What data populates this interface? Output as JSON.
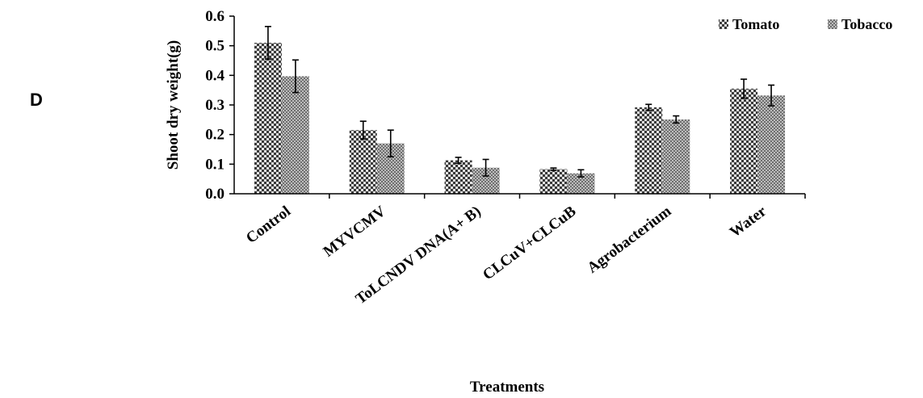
{
  "panel_label": "D",
  "colors": {
    "tomato": "#5a5a5a",
    "tobacco": "#9a9a9a"
  },
  "chart_data": {
    "type": "bar",
    "categories": [
      "Control",
      "MYVCMV",
      "ToLCNDV DNA(A+ B)",
      "CLCuV+CLCuB",
      "Agrobacterium",
      "Water"
    ],
    "series": [
      {
        "name": "Tomato",
        "values": [
          0.51,
          0.215,
          0.113,
          0.083,
          0.292,
          0.355
        ],
        "errors": [
          0.055,
          0.03,
          0.01,
          0.004,
          0.01,
          0.032
        ]
      },
      {
        "name": "Tobacco",
        "values": [
          0.397,
          0.17,
          0.088,
          0.069,
          0.251,
          0.332
        ],
        "errors": [
          0.055,
          0.045,
          0.028,
          0.012,
          0.012,
          0.035
        ]
      }
    ],
    "xlabel": "Treatments",
    "ylabel": "Shoot dry weight(g)",
    "ylim": [
      0,
      0.6
    ],
    "yticks": [
      "0.0",
      "0.1",
      "0.2",
      "0.3",
      "0.4",
      "0.5",
      "0.6"
    ],
    "legend": "top-right",
    "grid": false
  }
}
